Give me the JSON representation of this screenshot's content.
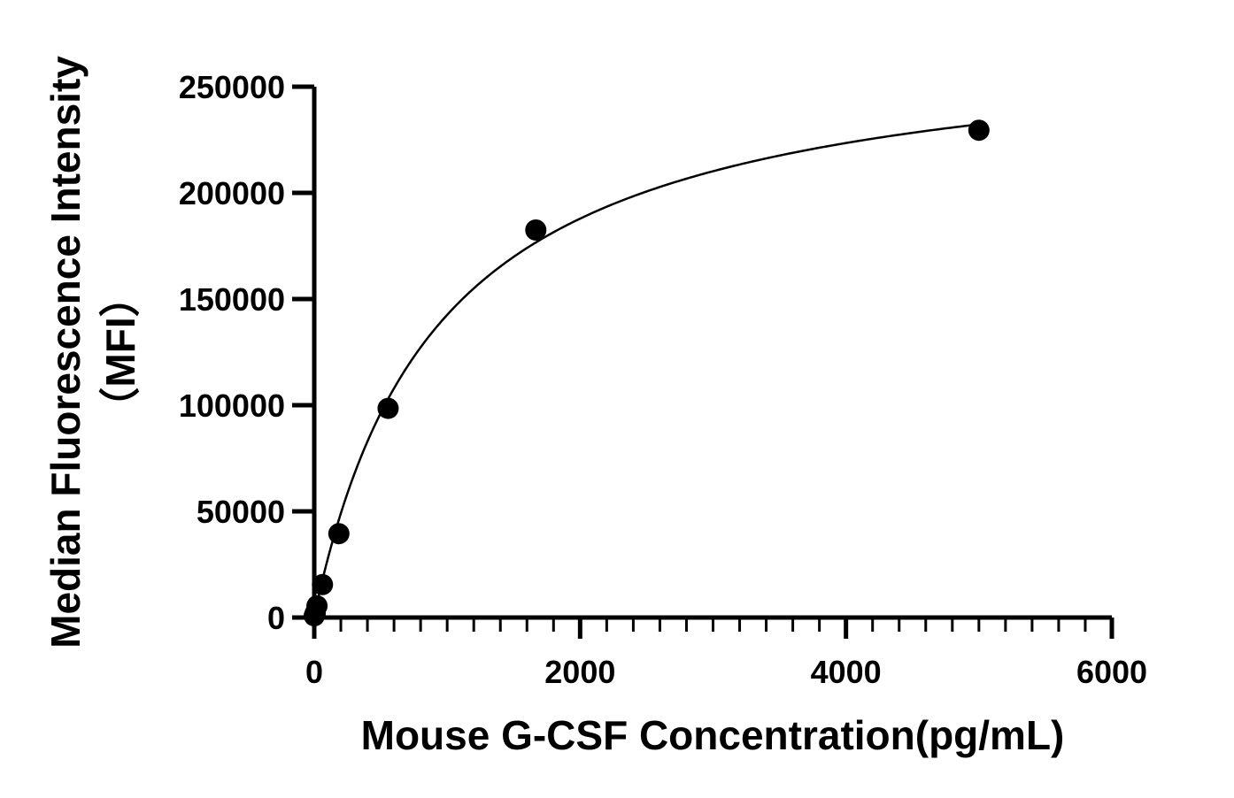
{
  "chart_data": {
    "type": "scatter",
    "title": "",
    "xlabel": "Mouse G-CSF Concentration(pg/mL)",
    "ylabel_line1": "Median Fluorescence Intensity",
    "ylabel_line2": "（MFI）",
    "xlim": [
      0,
      6000
    ],
    "ylim": [
      0,
      250000
    ],
    "x_major_ticks": [
      0,
      2000,
      4000,
      6000
    ],
    "x_tick_labels": [
      "0",
      "2000",
      "4000",
      "6000"
    ],
    "x_minor_step": 200,
    "y_ticks": [
      0,
      50000,
      100000,
      150000,
      200000,
      250000
    ],
    "y_tick_labels": [
      "0",
      "50000",
      "100000",
      "150000",
      "200000",
      "250000"
    ],
    "grid": false,
    "legend": "none",
    "points": {
      "x": [
        0,
        6.9,
        20.6,
        61.7,
        185.2,
        555.6,
        1666.7,
        5000
      ],
      "y": [
        800,
        2000,
        5500,
        15500,
        39500,
        98500,
        182500,
        229500
      ]
    },
    "fit_curve": {
      "model": "hyperbolic",
      "vmax": 275000,
      "k": 940,
      "y0": 800
    },
    "colors": {
      "marks": "#000000",
      "background": "#ffffff"
    }
  }
}
